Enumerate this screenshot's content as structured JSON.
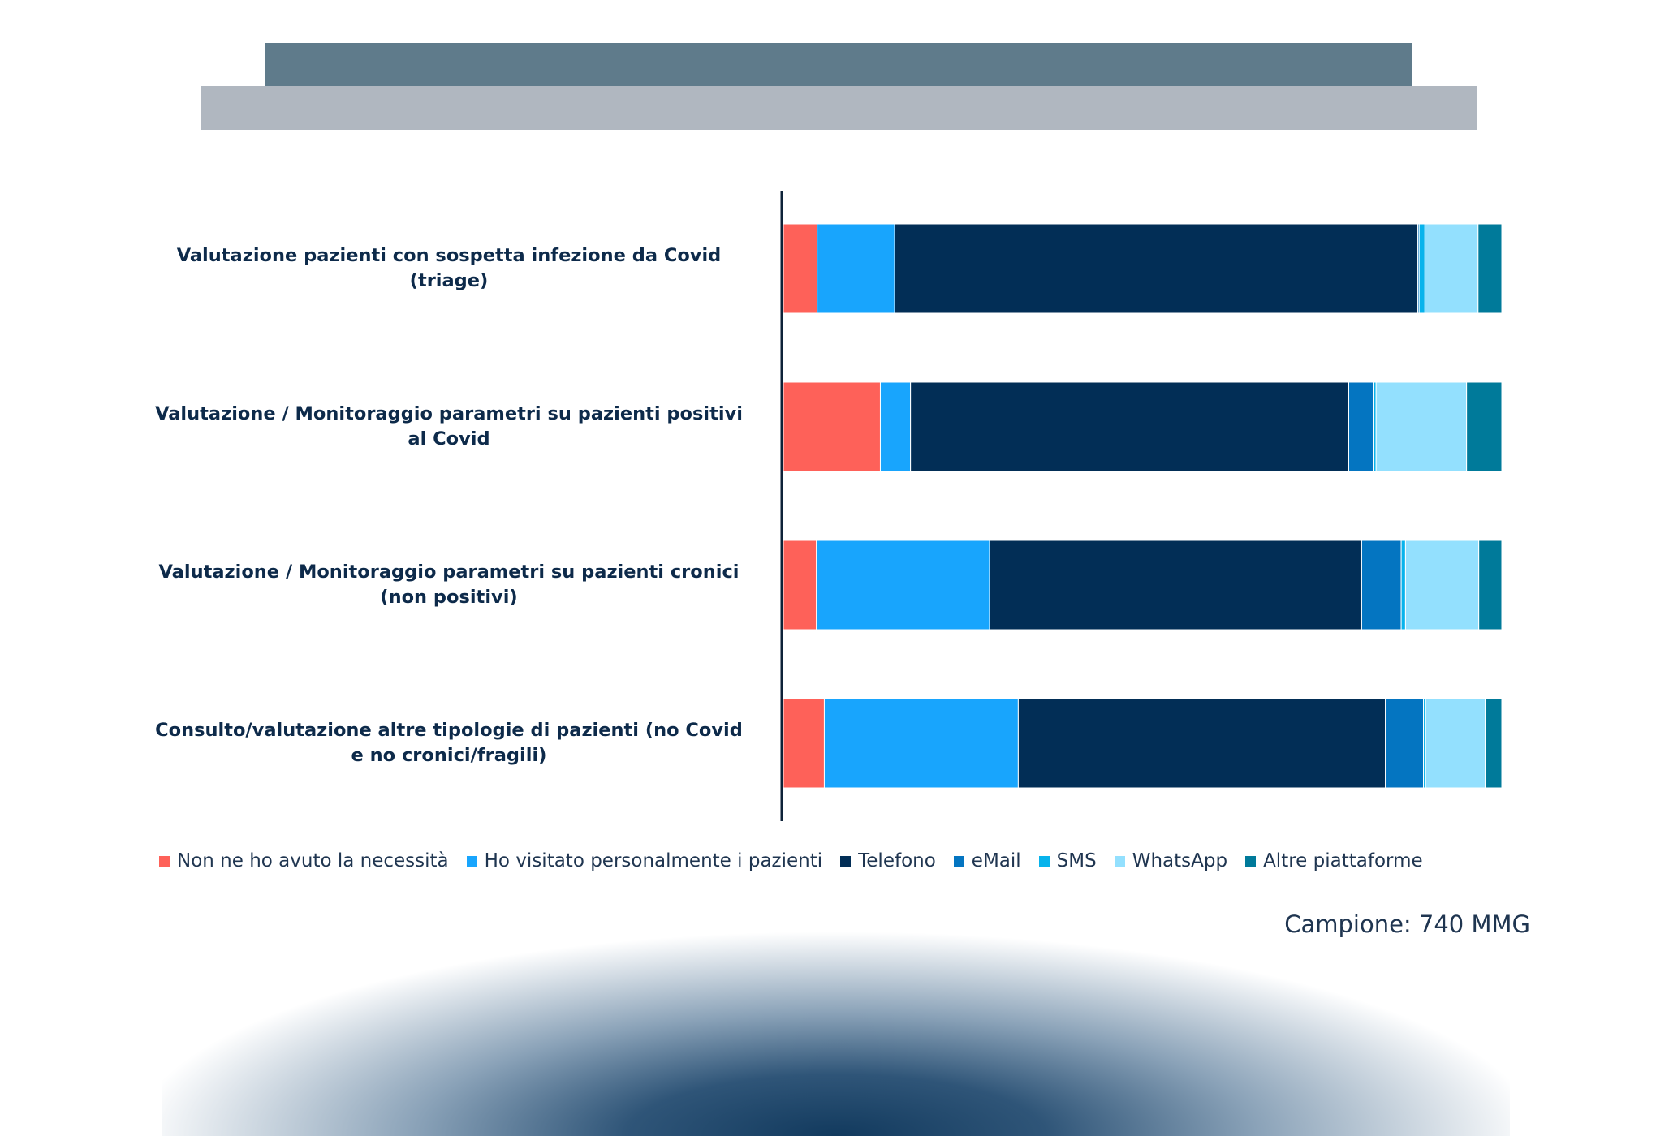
{
  "chart_data": {
    "type": "bar",
    "orientation": "horizontal",
    "stacked": true,
    "normalized_percent": true,
    "categories": [
      "Valutazione pazienti con sospetta infezione da Covid (triage)",
      "Valutazione / Monitoraggio parametri su pazienti positivi al Covid",
      "Valutazione / Monitoraggio parametri su pazienti cronici (non positivi)",
      "Consulto/valutazione altre tipologie di pazienti (no Covid e no cronici/fragili)"
    ],
    "category_lines": [
      [
        "Valutazione pazienti con sospetta infezione da Covid",
        "(triage)"
      ],
      [
        "Valutazione / Monitoraggio parametri su pazienti positivi",
        "al Covid"
      ],
      [
        "Valutazione / Monitoraggio parametri su pazienti cronici",
        "(non positivi)"
      ],
      [
        "Consulto/valutazione altre tipologie di pazienti (no Covid",
        "e no cronici/fragili)"
      ]
    ],
    "series": [
      {
        "name": "Non ne ho avuto la necessità",
        "color": "#fe6159",
        "values": [
          4.7,
          13.5,
          4.6,
          5.7
        ]
      },
      {
        "name": "Ho visitato personalmente i pazienti",
        "color": "#18a5fd",
        "values": [
          10.8,
          4.2,
          24.1,
          27.0
        ]
      },
      {
        "name": "Telefono",
        "color": "#022e56",
        "values": [
          72.8,
          61.0,
          51.8,
          51.1
        ]
      },
      {
        "name": "eMail",
        "color": "#0475c1",
        "values": [
          0.2,
          3.4,
          5.5,
          5.3
        ]
      },
      {
        "name": "SMS",
        "color": "#07b3ec",
        "values": [
          0.8,
          0.4,
          0.6,
          0.3
        ]
      },
      {
        "name": "WhatsApp",
        "color": "#93e0fe",
        "values": [
          7.4,
          12.6,
          10.2,
          8.3
        ]
      },
      {
        "name": "Altre piattaforme",
        "color": "#007a9a",
        "values": [
          3.3,
          4.9,
          3.2,
          2.3
        ]
      }
    ],
    "xlim": [
      0,
      100
    ],
    "legend_position": "bottom",
    "grid": false
  },
  "footer": {
    "sample": "Campione: 740 MMG"
  }
}
